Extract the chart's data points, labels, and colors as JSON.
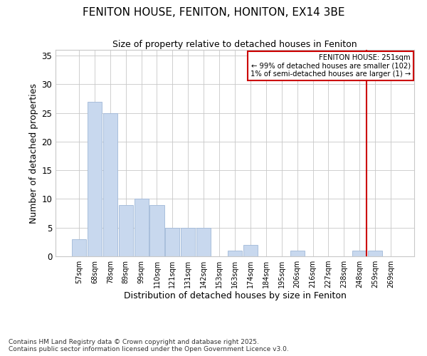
{
  "title": "FENITON HOUSE, FENITON, HONITON, EX14 3BE",
  "subtitle": "Size of property relative to detached houses in Feniton",
  "xlabel": "Distribution of detached houses by size in Feniton",
  "ylabel": "Number of detached properties",
  "categories": [
    "57sqm",
    "68sqm",
    "78sqm",
    "89sqm",
    "99sqm",
    "110sqm",
    "121sqm",
    "131sqm",
    "142sqm",
    "153sqm",
    "163sqm",
    "174sqm",
    "184sqm",
    "195sqm",
    "206sqm",
    "216sqm",
    "227sqm",
    "238sqm",
    "248sqm",
    "259sqm",
    "269sqm"
  ],
  "values": [
    3,
    27,
    25,
    9,
    10,
    9,
    5,
    5,
    5,
    0,
    1,
    2,
    0,
    0,
    1,
    0,
    0,
    0,
    1,
    1,
    0
  ],
  "bar_color": "#c8d8ee",
  "bar_edgecolor": "#a0b8d8",
  "ylim": [
    0,
    36
  ],
  "yticks": [
    0,
    5,
    10,
    15,
    20,
    25,
    30,
    35
  ],
  "property_label": "FENITON HOUSE: 251sqm",
  "annotation_line1": "← 99% of detached houses are smaller (102)",
  "annotation_line2": "1% of semi-detached houses are larger (1) →",
  "vline_bin_index": 18,
  "vline_color": "#cc0000",
  "annotation_box_color": "#cc0000",
  "background_color": "#ffffff",
  "grid_color": "#c8c8c8",
  "footnote_line1": "Contains HM Land Registry data © Crown copyright and database right 2025.",
  "footnote_line2": "Contains public sector information licensed under the Open Government Licence v3.0."
}
